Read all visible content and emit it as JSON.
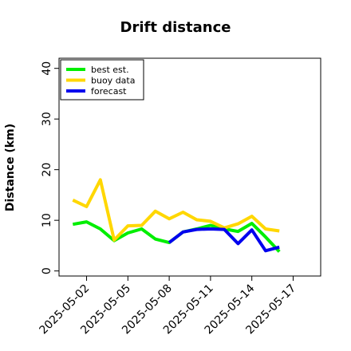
{
  "chart_data": {
    "type": "line",
    "title": "Drift distance",
    "xlabel": "",
    "ylabel": "Distance (km)",
    "ylim": [
      -1,
      42
    ],
    "xlim": [
      "2025-04-30",
      "2025-05-19"
    ],
    "yticks": [
      0,
      10,
      20,
      30,
      40
    ],
    "xticks": [
      "2025-05-02",
      "2025-05-05",
      "2025-05-08",
      "2025-05-11",
      "2025-05-14",
      "2025-05-17"
    ],
    "highlight_tick": "2025-05-08",
    "highlight_color": "#228b22",
    "grid": false,
    "legend_position": "top-left",
    "series": [
      {
        "name": "best est.",
        "color": "#00ee00",
        "x": [
          "2025-05-01",
          "2025-05-02",
          "2025-05-03",
          "2025-05-04",
          "2025-05-05",
          "2025-05-06",
          "2025-05-07",
          "2025-05-08",
          "2025-05-09",
          "2025-05-10",
          "2025-05-11",
          "2025-05-12",
          "2025-05-13",
          "2025-05-14",
          "2025-05-15",
          "2025-05-16"
        ],
        "y": [
          9.2,
          9.7,
          8.3,
          6.0,
          7.5,
          8.3,
          6.3,
          5.6,
          7.7,
          8.3,
          9.0,
          8.3,
          7.8,
          9.4,
          6.7,
          3.8
        ]
      },
      {
        "name": "buoy data",
        "color": "#ffd700",
        "x": [
          "2025-05-01",
          "2025-05-02",
          "2025-05-03",
          "2025-05-04",
          "2025-05-05",
          "2025-05-06",
          "2025-05-07",
          "2025-05-08",
          "2025-05-09",
          "2025-05-10",
          "2025-05-11",
          "2025-05-12",
          "2025-05-13",
          "2025-05-14",
          "2025-05-15",
          "2025-05-16"
        ],
        "y": [
          14.0,
          12.7,
          18.0,
          6.1,
          8.9,
          9.0,
          11.8,
          10.3,
          11.6,
          10.1,
          9.8,
          8.5,
          9.3,
          10.8,
          8.3,
          7.9
        ]
      },
      {
        "name": "forecast",
        "color": "#0000ee",
        "x": [
          "2025-05-08",
          "2025-05-09",
          "2025-05-10",
          "2025-05-11",
          "2025-05-12",
          "2025-05-13",
          "2025-05-14",
          "2025-05-15",
          "2025-05-16"
        ],
        "y": [
          5.6,
          7.7,
          8.2,
          8.3,
          8.2,
          5.4,
          8.1,
          4.0,
          4.7
        ]
      }
    ]
  }
}
